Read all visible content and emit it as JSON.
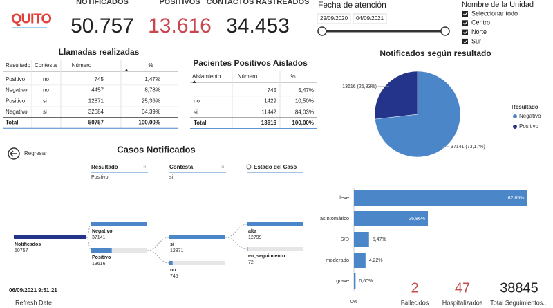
{
  "logo": "QUITO",
  "kpis": [
    {
      "label": "NOTIFICADOS",
      "value": "50.757"
    },
    {
      "label": "POSITIVOS",
      "value": "13.616"
    },
    {
      "label": "CONTACTOS RASTREADOS",
      "value": "34.453"
    }
  ],
  "date_slicer": {
    "title": "Fecha de atención",
    "start": "29/09/2020",
    "end": "04/09/2021"
  },
  "unit_filter": {
    "title": "Nombre de la Unidad",
    "options": [
      "Seleccionar todo",
      "Centro",
      "Norte",
      "Sur"
    ]
  },
  "calls_table": {
    "title": "Llamadas realizadas",
    "columns": [
      "Resultado",
      "Contesta",
      "Número",
      "%"
    ],
    "rows": [
      [
        "Positivo",
        "no",
        "745",
        "1,47%"
      ],
      [
        "Negativo",
        "no",
        "4457",
        "8,78%"
      ],
      [
        "Positivo",
        "si",
        "12871",
        "25,36%"
      ],
      [
        "Negativo",
        "si",
        "32684",
        "64,39%"
      ]
    ],
    "total": [
      "Total",
      null,
      "50757",
      "100,00%"
    ]
  },
  "isolated_table": {
    "title": "Pacientes Positivos Aislados",
    "columns": [
      "Aislamiento",
      "Número",
      "%"
    ],
    "rows": [
      [
        null,
        "745",
        "5,47%"
      ],
      [
        "no",
        "1429",
        "10,50%"
      ],
      [
        "si",
        "11442",
        "84,03%"
      ]
    ],
    "total": [
      "Total",
      "13616",
      "100,00%"
    ]
  },
  "chart_data": [
    {
      "type": "pie",
      "title": "Notificados según resultado",
      "categories": [
        "Negativo",
        "Positivo"
      ],
      "values": [
        37141,
        13616
      ],
      "value_labels": [
        "37141 (73,17%)",
        "13616 (26,83%)"
      ],
      "colors": [
        "#4a86c8",
        "#24348a"
      ],
      "legend_title": "Resultado",
      "legend": "right"
    },
    {
      "type": "bar",
      "orientation": "horizontal",
      "categories": [
        "leve",
        "asintomático",
        "S/D",
        "moderado",
        "grave"
      ],
      "values": [
        62.85,
        26.86,
        5.47,
        4.22,
        0.6
      ],
      "value_labels": [
        "62,85%",
        "26,86%",
        "5,47%",
        "4,22%",
        "0,60%"
      ],
      "color": "#4a86c8",
      "xlim": [
        0,
        63
      ],
      "xticks": [
        {
          "value": 0,
          "label": "0%"
        }
      ]
    }
  ],
  "decomposition": {
    "back": "Regresar",
    "title": "Casos Notificados",
    "headers": [
      {
        "field": "Resultado",
        "filter": "Positivo"
      },
      {
        "field": "Contesta",
        "filter": "si"
      },
      {
        "field": "Estado del Caso",
        "filter": null
      }
    ],
    "columns": [
      [
        {
          "name": "Notificados",
          "value": 50757
        }
      ],
      [
        {
          "name": "Negativo",
          "value": 37141
        },
        {
          "name": "Positivo",
          "value": 13616
        }
      ],
      [
        {
          "name": "si",
          "value": 12871
        },
        {
          "name": "no",
          "value": 745
        }
      ],
      [
        {
          "name": "alta",
          "value": 12799
        },
        {
          "name": "en_seguimiento",
          "value": 72
        }
      ]
    ]
  },
  "refresh": {
    "date": "06/09/2021 9:51:21",
    "label": "Refresh Date"
  },
  "bottom_kpis": [
    {
      "value": "2",
      "label": "Fallecidos",
      "color": "#c0504d"
    },
    {
      "value": "47",
      "label": "Hospitalizados",
      "color": "#c0504d"
    },
    {
      "value": "38845",
      "label": "Total Seguimientos...",
      "color": "#222222"
    }
  ]
}
